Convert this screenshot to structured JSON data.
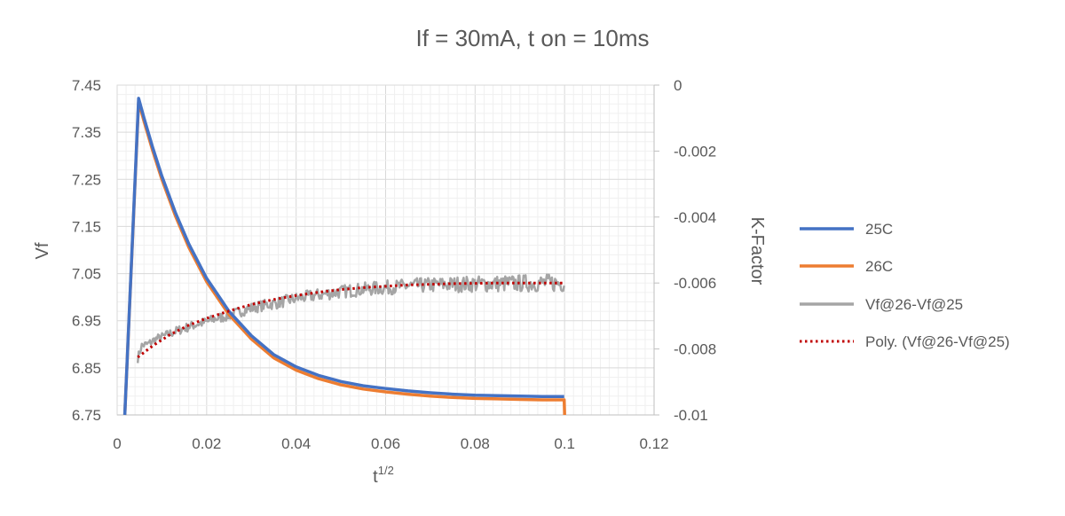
{
  "chart_data": {
    "type": "line",
    "title": "If = 30mA, t on = 10ms",
    "xlabel": "t",
    "xlabel_superscript": "1/2",
    "ylabel_left": "Vf",
    "ylabel_right": "K-Factor",
    "xlim": [
      0,
      0.12
    ],
    "ylim_left": [
      6.75,
      7.45
    ],
    "ylim_right": [
      -0.01,
      0
    ],
    "x_ticks": [
      "0",
      "0.02",
      "0.04",
      "0.06",
      "0.08",
      "0.1",
      "0.12"
    ],
    "y_left_ticks": [
      "7.45",
      "7.35",
      "7.25",
      "7.15",
      "7.05",
      "6.95",
      "6.85",
      "6.75"
    ],
    "y_right_ticks": [
      "0",
      "-0.002",
      "-0.004",
      "-0.006",
      "-0.008",
      "-0.01"
    ],
    "grid": true,
    "legend_position": "right",
    "series": [
      {
        "name": "25C",
        "axis": "left",
        "color": "#4472C4",
        "style": "solid",
        "points": [
          [
            0.0017,
            6.75
          ],
          [
            0.0048,
            7.422
          ],
          [
            0.006,
            7.38
          ],
          [
            0.008,
            7.316
          ],
          [
            0.01,
            7.257
          ],
          [
            0.013,
            7.18
          ],
          [
            0.016,
            7.113
          ],
          [
            0.02,
            7.04
          ],
          [
            0.025,
            6.97
          ],
          [
            0.03,
            6.918
          ],
          [
            0.035,
            6.878
          ],
          [
            0.04,
            6.852
          ],
          [
            0.045,
            6.834
          ],
          [
            0.05,
            6.821
          ],
          [
            0.055,
            6.812
          ],
          [
            0.06,
            6.806
          ],
          [
            0.065,
            6.801
          ],
          [
            0.07,
            6.797
          ],
          [
            0.075,
            6.794
          ],
          [
            0.08,
            6.792
          ],
          [
            0.085,
            6.791
          ],
          [
            0.09,
            6.79
          ],
          [
            0.095,
            6.789
          ],
          [
            0.0999,
            6.789
          ]
        ]
      },
      {
        "name": "26C",
        "axis": "left",
        "color": "#ED7D31",
        "style": "solid",
        "points": [
          [
            0.0017,
            6.75
          ],
          [
            0.0048,
            7.415
          ],
          [
            0.006,
            7.373
          ],
          [
            0.008,
            7.309
          ],
          [
            0.01,
            7.25
          ],
          [
            0.013,
            7.173
          ],
          [
            0.016,
            7.106
          ],
          [
            0.02,
            7.033
          ],
          [
            0.025,
            6.963
          ],
          [
            0.03,
            6.911
          ],
          [
            0.035,
            6.871
          ],
          [
            0.04,
            6.845
          ],
          [
            0.045,
            6.827
          ],
          [
            0.05,
            6.814
          ],
          [
            0.055,
            6.805
          ],
          [
            0.06,
            6.799
          ],
          [
            0.065,
            6.794
          ],
          [
            0.07,
            6.79
          ],
          [
            0.075,
            6.787
          ],
          [
            0.08,
            6.785
          ],
          [
            0.085,
            6.784
          ],
          [
            0.09,
            6.783
          ],
          [
            0.095,
            6.782
          ],
          [
            0.0999,
            6.782
          ],
          [
            0.1,
            6.75
          ]
        ]
      },
      {
        "name": "Vf@26-Vf@25",
        "axis": "right",
        "color": "#A5A5A5",
        "style": "solid",
        "points": [
          [
            0.0046,
            -0.0083
          ],
          [
            0.005,
            -0.0081
          ],
          [
            0.0055,
            -0.0079
          ],
          [
            0.006,
            -0.00788
          ],
          [
            0.007,
            -0.00785
          ],
          [
            0.008,
            -0.00775
          ],
          [
            0.009,
            -0.00768
          ],
          [
            0.01,
            -0.00764
          ],
          [
            0.012,
            -0.00752
          ],
          [
            0.014,
            -0.00742
          ],
          [
            0.016,
            -0.00733
          ],
          [
            0.018,
            -0.00724
          ],
          [
            0.02,
            -0.00718
          ],
          [
            0.022,
            -0.00708
          ],
          [
            0.024,
            -0.00702
          ],
          [
            0.026,
            -0.00694
          ],
          [
            0.028,
            -0.00684
          ],
          [
            0.03,
            -0.00676
          ],
          [
            0.033,
            -0.00667
          ],
          [
            0.036,
            -0.0066
          ],
          [
            0.04,
            -0.00647
          ],
          [
            0.044,
            -0.00638
          ],
          [
            0.048,
            -0.0063
          ],
          [
            0.052,
            -0.00623
          ],
          [
            0.056,
            -0.00618
          ],
          [
            0.06,
            -0.00614
          ],
          [
            0.065,
            -0.00609
          ],
          [
            0.07,
            -0.00606
          ],
          [
            0.075,
            -0.00604
          ],
          [
            0.08,
            -0.00603
          ],
          [
            0.085,
            -0.00602
          ],
          [
            0.09,
            -0.00601
          ],
          [
            0.095,
            -0.006
          ],
          [
            0.0999,
            -0.006
          ]
        ]
      },
      {
        "name": "Poly. (Vf@26-Vf@25)",
        "axis": "right",
        "color": "#C00000",
        "style": "dotted",
        "points": [
          [
            0.0046,
            -0.00825
          ],
          [
            0.008,
            -0.0079
          ],
          [
            0.012,
            -0.00755
          ],
          [
            0.016,
            -0.00728
          ],
          [
            0.02,
            -0.00707
          ],
          [
            0.025,
            -0.00685
          ],
          [
            0.03,
            -0.00665
          ],
          [
            0.035,
            -0.0065
          ],
          [
            0.04,
            -0.00638
          ],
          [
            0.045,
            -0.00628
          ],
          [
            0.05,
            -0.0062
          ],
          [
            0.055,
            -0.00614
          ],
          [
            0.06,
            -0.0061
          ],
          [
            0.065,
            -0.00606
          ],
          [
            0.07,
            -0.00604
          ],
          [
            0.075,
            -0.00602
          ],
          [
            0.08,
            -0.00601
          ],
          [
            0.085,
            -0.006
          ],
          [
            0.09,
            -0.006
          ],
          [
            0.095,
            -0.006
          ],
          [
            0.0999,
            -0.006
          ]
        ]
      }
    ]
  }
}
